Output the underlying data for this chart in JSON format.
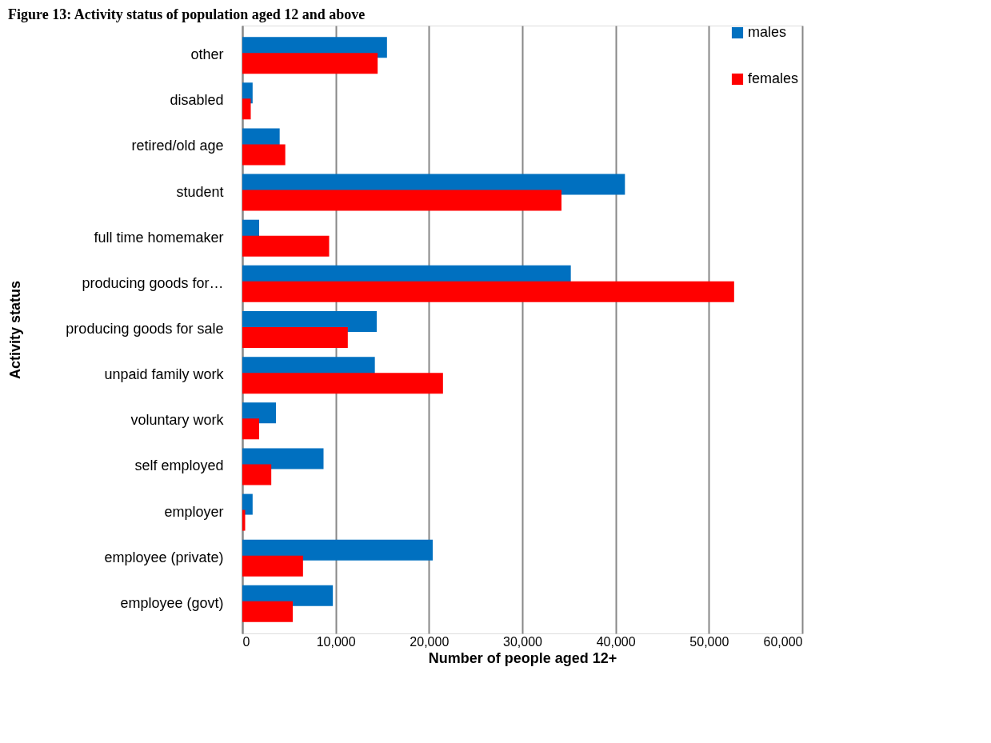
{
  "chart_data": {
    "type": "bar",
    "orientation": "horizontal",
    "title": "Figure 13: Activity status of population aged 12 and above",
    "xlabel": "Number of people aged 12+",
    "ylabel": "Activity status",
    "categories": [
      "other",
      "disabled",
      "retired/old age",
      "student",
      "full time homemaker",
      "producing goods for…",
      "producing goods for sale",
      "unpaid family work",
      "voluntary work",
      "self employed",
      "employer",
      "employee (private)",
      "employee (govt)"
    ],
    "series": [
      {
        "name": "males",
        "color": "#0070c0",
        "values": [
          15500,
          1100,
          4000,
          41000,
          1800,
          35200,
          14400,
          14200,
          3600,
          8700,
          1100,
          20400,
          9700
        ]
      },
      {
        "name": "females",
        "color": "#ff0000",
        "values": [
          14500,
          900,
          4600,
          34200,
          9300,
          52700,
          11300,
          21500,
          1800,
          3100,
          300,
          6500,
          5400
        ]
      }
    ],
    "xlim": [
      0,
      60000
    ],
    "xticks": [
      {
        "value": 0,
        "label": "0"
      },
      {
        "value": 10000,
        "label": "10,000"
      },
      {
        "value": 20000,
        "label": "20,000"
      },
      {
        "value": 30000,
        "label": "30,000"
      },
      {
        "value": 40000,
        "label": "40,000"
      },
      {
        "value": 50000,
        "label": "50,000"
      },
      {
        "value": 60000,
        "label": "60,000"
      }
    ],
    "grid": "x",
    "legend": "right"
  }
}
